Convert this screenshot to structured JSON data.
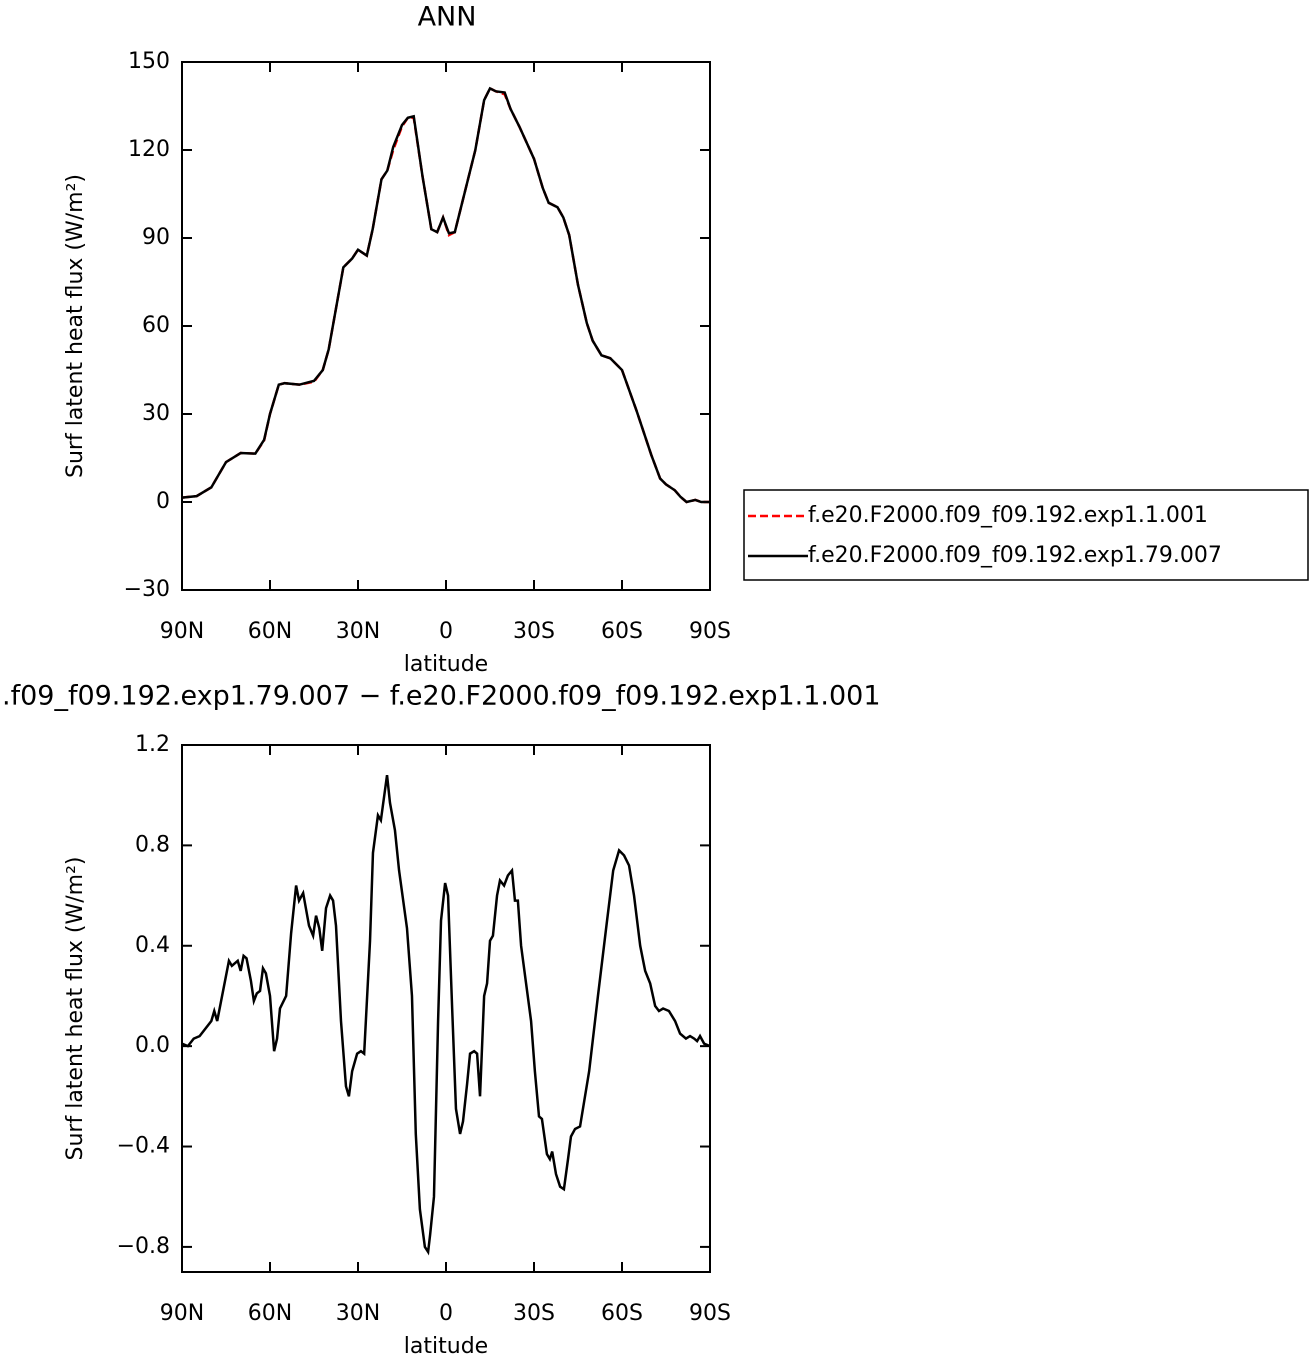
{
  "chart_data": [
    {
      "type": "line",
      "title": "ANN",
      "xlabel": "latitude",
      "ylabel": "Surf latent heat flux (W/m²)",
      "x": [
        90,
        85,
        80,
        75,
        70,
        65,
        62,
        60,
        57,
        55,
        50,
        45,
        42,
        40,
        35,
        32,
        30,
        27,
        25,
        22,
        20,
        18,
        15,
        13,
        11,
        8,
        5,
        3,
        1,
        -1,
        -3,
        -5,
        -10,
        -13,
        -15,
        -17,
        -20,
        -22,
        -25,
        -30,
        -33,
        -35,
        -38,
        -40,
        -42,
        -45,
        -48,
        -50,
        -53,
        -56,
        -60,
        -65,
        -70,
        -73,
        -75,
        -78,
        -80,
        -82,
        -85,
        -87,
        -90
      ],
      "series": [
        {
          "name": "f.e20.F2000.f09_f09.192.exp1.1.001",
          "color": "#ff0000",
          "linestyle": "dashed",
          "values": [
            1.5,
            2,
            5,
            13.6,
            16.7,
            16.5,
            21,
            30,
            40,
            40.5,
            40,
            41,
            45,
            52,
            80,
            83,
            86,
            84,
            93,
            110,
            113,
            120,
            128,
            131,
            131,
            111,
            93,
            92,
            97,
            91,
            92,
            100,
            120,
            137,
            141,
            140,
            139,
            134,
            128,
            117,
            107,
            102,
            100.5,
            97,
            91,
            74,
            61,
            55,
            50,
            49,
            45,
            31,
            16,
            8,
            6,
            4,
            1.7,
            0,
            0.7,
            0,
            0
          ]
        },
        {
          "name": "f.e20.F2000.f09_f09.192.exp1.79.007",
          "color": "#000000",
          "linestyle": "solid",
          "values": [
            1.5,
            2,
            5,
            13.6,
            16.7,
            16.5,
            21.2,
            30,
            40,
            40.5,
            40,
            41.3,
            45,
            52,
            80,
            83,
            86,
            84,
            93,
            110,
            113,
            121,
            128.5,
            131,
            131.5,
            111,
            93,
            92,
            97,
            91.6,
            92,
            100,
            120,
            137,
            141,
            140,
            139.6,
            134,
            128,
            117,
            107,
            102,
            100.5,
            97,
            91,
            74,
            61,
            55,
            50,
            49,
            45,
            31,
            16,
            8,
            6,
            4,
            1.7,
            0,
            0.7,
            0,
            0
          ]
        }
      ],
      "xlim": [
        90,
        -90
      ],
      "xticks": [
        {
          "value": 90,
          "label": "90N"
        },
        {
          "value": 60,
          "label": "60N"
        },
        {
          "value": 30,
          "label": "30N"
        },
        0,
        {
          "value": -30,
          "label": "30S"
        },
        {
          "value": -60,
          "label": "60S"
        },
        {
          "value": -90,
          "label": "90S"
        }
      ],
      "ylim": [
        -30,
        150
      ],
      "yticks": [
        {
          "value": -30,
          "label": "−30"
        },
        0,
        30,
        60,
        90,
        120,
        150
      ],
      "legend": "right"
    },
    {
      "type": "line",
      "title": ".f09_f09.192.exp1.79.007 − f.e20.F2000.f09_f09.192.exp1.1.001",
      "xlabel": "latitude",
      "ylabel": "Surf latent heat flux (W/m²)",
      "x": [
        90,
        88,
        86,
        84,
        80,
        79,
        78,
        75,
        74,
        73,
        71,
        70,
        69,
        68,
        66.5,
        65.5,
        64.5,
        63.4,
        62.4,
        61.4,
        60,
        58.6,
        57.6,
        56.6,
        54.5,
        52.8,
        51.1,
        50.1,
        48.7,
        46.7,
        45.3,
        44.3,
        43.2,
        42.2,
        40.9,
        39.5,
        38.5,
        37.5,
        35.8,
        34.1,
        33.1,
        32,
        30.3,
        29,
        27.9,
        25.9,
        24.9,
        23.2,
        22.2,
        20.1,
        19.1,
        17.4,
        16,
        13.3,
        11.6,
        10.3,
        8.9,
        7.2,
        6.1,
        5.4,
        4.1,
        2.7,
        1.7,
        0.3,
        -0.7,
        -2.1,
        -3.4,
        -4.8,
        -5.8,
        -7.2,
        -8.2,
        -9.6,
        -10.6,
        -11.6,
        -13,
        -14,
        -15,
        -16,
        -17.4,
        -18.4,
        -19.8,
        -21.1,
        -22.5,
        -23.5,
        -24.5,
        -25.6,
        -27.3,
        -29,
        -30.3,
        -31.7,
        -32.7,
        -34.4,
        -35.4,
        -36.2,
        -37.5,
        -38.9,
        -40.2,
        -41.6,
        -42.6,
        -44,
        -45.7,
        -48.8,
        -51.8,
        -54.9,
        -57,
        -59,
        -60.7,
        -62.4,
        -64.1,
        -66.2,
        -67.9,
        -69.6,
        -71.3,
        -72.6,
        -74,
        -76,
        -78.1,
        -79.8,
        -81.8,
        -83.2,
        -84.6,
        -85.6,
        -86.6,
        -88,
        -90
      ],
      "series": [
        {
          "name": "f.e20.F2000.f09_f09.192.exp1.79.007",
          "color": "#000000",
          "linestyle": "solid",
          "values": [
            0.01,
            0,
            0.03,
            0.04,
            0.1,
            0.14,
            0.1,
            0.28,
            0.34,
            0.32,
            0.34,
            0.3,
            0.36,
            0.35,
            0.26,
            0.18,
            0.21,
            0.22,
            0.31,
            0.29,
            0.2,
            -0.02,
            0.03,
            0.15,
            0.2,
            0.45,
            0.64,
            0.58,
            0.61,
            0.48,
            0.44,
            0.52,
            0.47,
            0.38,
            0.55,
            0.6,
            0.58,
            0.48,
            0.1,
            -0.16,
            -0.2,
            -0.1,
            -0.03,
            -0.02,
            -0.03,
            0.42,
            0.77,
            0.92,
            0.9,
            1.08,
            0.97,
            0.86,
            0.7,
            0.47,
            0.2,
            -0.35,
            -0.65,
            -0.8,
            -0.82,
            -0.75,
            -0.6,
            0.1,
            0.5,
            0.65,
            0.6,
            0.15,
            -0.25,
            -0.35,
            -0.3,
            -0.15,
            -0.03,
            -0.02,
            -0.03,
            -0.2,
            0.2,
            0.25,
            0.42,
            0.44,
            0.6,
            0.66,
            0.64,
            0.68,
            0.7,
            0.58,
            0.58,
            0.4,
            0.25,
            0.1,
            -0.1,
            -0.28,
            -0.29,
            -0.43,
            -0.45,
            -0.42,
            -0.51,
            -0.56,
            -0.57,
            -0.45,
            -0.36,
            -0.33,
            -0.32,
            -0.1,
            0.2,
            0.5,
            0.7,
            0.78,
            0.76,
            0.72,
            0.6,
            0.4,
            0.3,
            0.25,
            0.16,
            0.14,
            0.15,
            0.14,
            0.1,
            0.05,
            0.03,
            0.04,
            0.03,
            0.02,
            0.04,
            0.01,
            0
          ]
        }
      ],
      "xlim": [
        90,
        -90
      ],
      "xticks": [
        {
          "value": 90,
          "label": "90N"
        },
        {
          "value": 60,
          "label": "60N"
        },
        {
          "value": 30,
          "label": "30N"
        },
        0,
        {
          "value": -30,
          "label": "30S"
        },
        {
          "value": -60,
          "label": "60S"
        },
        {
          "value": -90,
          "label": "90S"
        }
      ],
      "ylim": [
        -0.9,
        1.2
      ],
      "yticks": [
        {
          "value": -0.8,
          "label": "−0.8"
        },
        {
          "value": -0.4,
          "label": "−0.4"
        },
        {
          "value": 0,
          "label": "0.0"
        },
        0.4,
        0.8,
        1.2
      ]
    }
  ]
}
